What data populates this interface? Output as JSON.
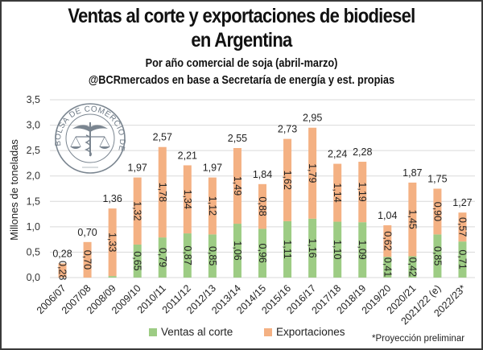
{
  "header": {
    "title_line1": "Ventas al corte y exportaciones de biodiesel",
    "title_line2": "en Argentina",
    "subtitle": "Por año comercial de soja (abril-marzo)",
    "source": "@BCRmercados en base a Secretaría de energía y est. propias"
  },
  "logo": {
    "text": "BOLSA DE COMERCIO DE ROSARIO",
    "icon": "caduceus-scales-seal-icon"
  },
  "footnote": "*Proyección preliminar",
  "chart_data": {
    "type": "bar",
    "stacked": true,
    "title": "Ventas al corte y exportaciones de biodiesel en Argentina",
    "subtitle": "Por año comercial de soja (abril-marzo)",
    "xlabel": "",
    "ylabel": "Millones de toneladas",
    "ylim": [
      0,
      3.5
    ],
    "yticks": [
      "0,0",
      "0,5",
      "1,0",
      "1,5",
      "2,0",
      "2,5",
      "3,0",
      "3,5"
    ],
    "ytick_values": [
      0,
      0.5,
      1.0,
      1.5,
      2.0,
      2.5,
      3.0,
      3.5
    ],
    "grid": true,
    "legend_position": "bottom",
    "categories": [
      "2006/07",
      "2007/08",
      "2008/09",
      "2009/10",
      "2010/11",
      "2011/12",
      "2012/13",
      "2013/14",
      "2014/15",
      "2015/16",
      "2016/17",
      "2017/18",
      "2018/19",
      "2019/20",
      "2020/21",
      "2021/22 (e)",
      "2022/23*"
    ],
    "series": [
      {
        "name": "Ventas al corte",
        "color": "#9dcc84",
        "values": [
          0,
          0,
          0.03,
          0.65,
          0.79,
          0.87,
          0.85,
          1.06,
          0.96,
          1.11,
          1.16,
          1.1,
          1.09,
          0.41,
          0.42,
          0.85,
          0.71
        ],
        "labels": [
          "",
          "",
          "",
          "0,65",
          "0,79",
          "0,87",
          "0,85",
          "1,06",
          "0,96",
          "1,11",
          "1,16",
          "1,10",
          "1,09",
          "0,41",
          "0,42",
          "0,85",
          "0,71"
        ]
      },
      {
        "name": "Exportaciones",
        "color": "#f4b183",
        "values": [
          0.28,
          0.7,
          1.33,
          1.32,
          1.78,
          1.34,
          1.12,
          1.49,
          0.88,
          1.62,
          1.79,
          1.14,
          1.19,
          0.62,
          1.45,
          0.9,
          0.57
        ],
        "labels": [
          "0,28",
          "0,70",
          "1,33",
          "1,32",
          "1,78",
          "1,34",
          "1,12",
          "1,49",
          "0,88",
          "1,62",
          "1,79",
          "1,14",
          "1,19",
          "0,62",
          "1,45",
          "0,90",
          "0,57"
        ]
      }
    ],
    "totals": [
      0.28,
      0.7,
      1.36,
      1.97,
      2.57,
      2.21,
      1.97,
      2.55,
      1.84,
      2.73,
      2.95,
      2.24,
      2.28,
      1.04,
      1.87,
      1.75,
      1.27
    ],
    "total_labels": [
      "0,28",
      "0,70",
      "1,36",
      "1,97",
      "2,57",
      "2,21",
      "1,97",
      "2,55",
      "1,84",
      "2,73",
      "2,95",
      "2,24",
      "2,28",
      "1,04",
      "1,87",
      "1,75",
      "1,27"
    ]
  }
}
